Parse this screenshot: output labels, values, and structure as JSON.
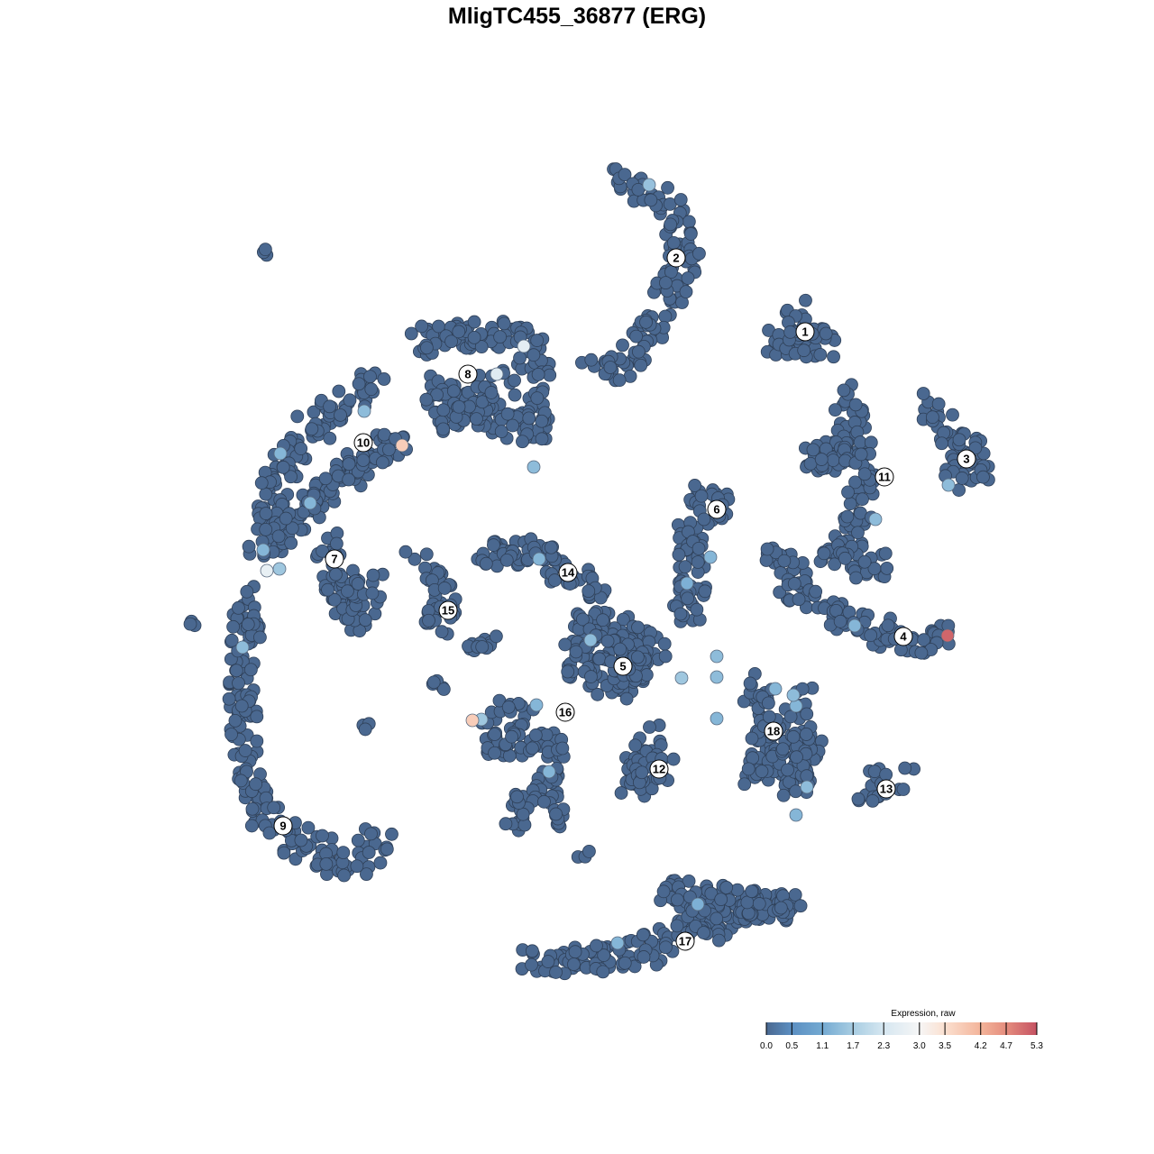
{
  "chart_data": {
    "type": "scatter",
    "title": "MligTC455_36877 (ERG)",
    "xlabel": "",
    "ylabel": "",
    "grid": false,
    "background_color": "#4a6890",
    "cluster_regions": [
      {
        "label": "1",
        "pos": [
          25.3,
          27.2
        ],
        "path": [
          [
            24,
            30
          ],
          [
            25,
            26
          ],
          [
            22,
            26
          ],
          [
            28,
            26
          ]
        ]
      },
      {
        "label": "2",
        "pos": [
          11,
          35.4
        ],
        "path": [
          [
            5,
            44
          ],
          [
            11,
            41
          ],
          [
            12,
            35
          ],
          [
            9,
            29
          ],
          [
            6,
            24
          ],
          [
            2,
            22.5
          ]
        ]
      },
      {
        "label": "3",
        "pos": [
          43.2,
          13.1
        ],
        "path": [
          [
            39,
            19
          ],
          [
            41,
            16
          ],
          [
            45,
            12.5
          ],
          [
            41.5,
            11
          ]
        ]
      },
      {
        "label": "4",
        "pos": [
          36.2,
          -6.6
        ],
        "path": [
          [
            22,
            3
          ],
          [
            25,
            -2
          ],
          [
            30,
            -5
          ],
          [
            36,
            -7
          ],
          [
            41,
            -7
          ]
        ]
      },
      {
        "label": "5",
        "pos": [
          5.1,
          -9.9
        ],
        "path": [
          [
            1,
            -5
          ],
          [
            6,
            -6
          ],
          [
            9,
            -8
          ],
          [
            5,
            -12
          ],
          [
            0,
            -10
          ],
          [
            1,
            -5
          ],
          [
            7,
            -10
          ],
          [
            3,
            -8
          ]
        ]
      },
      {
        "label": "6",
        "pos": [
          15.5,
          7.5
        ],
        "path": [
          [
            12,
            10
          ],
          [
            16,
            8
          ],
          [
            12,
            4
          ],
          [
            13,
            -1
          ],
          [
            12,
            -5
          ]
        ]
      },
      {
        "label": "7",
        "pos": [
          -26.9,
          2
        ],
        "path": [
          [
            -28,
            4
          ],
          [
            -27,
            -2
          ],
          [
            -24,
            -5
          ],
          [
            -23,
            -1
          ],
          [
            -26,
            0
          ]
        ]
      },
      {
        "label": "8",
        "pos": [
          -12.1,
          22.5
        ],
        "path": [
          [
            -18,
            26
          ],
          [
            -12,
            27
          ],
          [
            -6,
            27
          ],
          [
            -4,
            22
          ],
          [
            -5,
            16
          ],
          [
            -10,
            18
          ],
          [
            -16,
            21
          ],
          [
            -14,
            17
          ],
          [
            -8,
            22
          ]
        ]
      },
      {
        "label": "9",
        "pos": [
          -32.6,
          -27.6
        ],
        "path": [
          [
            -36.5,
            -2
          ],
          [
            -37,
            -11
          ],
          [
            -37,
            -20
          ],
          [
            -35,
            -26
          ],
          [
            -30,
            -30
          ],
          [
            -25,
            -32
          ],
          [
            -21.5,
            -29
          ]
        ]
      },
      {
        "label": "10",
        "pos": [
          -23.7,
          14.9
        ],
        "path": [
          [
            -22,
            22
          ],
          [
            -26,
            19
          ],
          [
            -30,
            16
          ],
          [
            -33,
            12
          ],
          [
            -34,
            7
          ],
          [
            -35,
            3
          ],
          [
            -20,
            16
          ],
          [
            -25,
            12
          ]
        ]
      },
      {
        "label": "11",
        "pos": [
          34.1,
          11.1
        ],
        "path": [
          [
            30,
            20
          ],
          [
            31,
            14
          ],
          [
            26,
            13
          ],
          [
            31,
            14
          ],
          [
            32,
            8
          ],
          [
            30,
            4
          ],
          [
            27.5,
            2.5
          ],
          [
            34,
            1
          ]
        ]
      },
      {
        "label": "12",
        "pos": [
          9.1,
          -21.3
        ],
        "path": [
          [
            8,
            -17
          ],
          [
            8,
            -19
          ],
          [
            6,
            -23
          ],
          [
            10,
            -21
          ]
        ]
      },
      {
        "label": "13",
        "pos": [
          34.3,
          -23.5
        ],
        "path": [
          [
            32,
            -23.5
          ],
          [
            36.5,
            -22.5
          ]
        ]
      },
      {
        "label": "14",
        "pos": [
          -1,
          0.5
        ],
        "path": [
          [
            -11,
            2.5
          ],
          [
            -4,
            3
          ],
          [
            -1,
            0
          ],
          [
            3,
            -2
          ]
        ]
      },
      {
        "label": "15",
        "pos": [
          -14.3,
          -3.7
        ],
        "path": [
          [
            -17.5,
            1.5
          ],
          [
            -14.5,
            -2
          ],
          [
            -16,
            -6.5
          ]
        ]
      },
      {
        "label": "16",
        "pos": [
          -1.3,
          -15
        ],
        "path": [
          [
            -6,
            -14
          ],
          [
            -10,
            -18
          ],
          [
            -2,
            -19
          ],
          [
            -4,
            -24
          ],
          [
            -8,
            -27
          ]
        ]
      },
      {
        "label": "17",
        "pos": [
          12,
          -40.4
        ],
        "path": [
          [
            -6,
            -42.5
          ],
          [
            0,
            -42.5
          ],
          [
            7,
            -42
          ],
          [
            12,
            -39
          ],
          [
            18,
            -37
          ],
          [
            24,
            -36.5
          ],
          [
            10,
            -35
          ],
          [
            16,
            -40
          ]
        ]
      },
      {
        "label": "18",
        "pos": [
          21.8,
          -17.1
        ],
        "path": [
          [
            19,
            -12
          ],
          [
            22,
            -15
          ],
          [
            20,
            -22
          ],
          [
            26,
            -19
          ],
          [
            24,
            -24
          ],
          [
            25,
            -13
          ]
        ]
      },
      {
        "label": "",
        "pos": null,
        "path": [
          [
            -34.5,
            36.5
          ],
          [
            -35,
            36
          ]
        ]
      },
      {
        "label": "",
        "pos": null,
        "path": [
          [
            -42,
            -5
          ],
          [
            -42.5,
            -5.3
          ]
        ]
      },
      {
        "label": "",
        "pos": null,
        "path": [
          [
            -23,
            -16.5
          ],
          [
            -23.5,
            -16.5
          ]
        ]
      },
      {
        "label": "",
        "pos": null,
        "path": [
          [
            -15,
            -12
          ],
          [
            -16,
            -12
          ]
        ]
      },
      {
        "label": "",
        "pos": null,
        "path": [
          [
            0.5,
            -31
          ],
          [
            1,
            -30.5
          ]
        ]
      },
      {
        "label": "",
        "pos": null,
        "path": [
          [
            -12,
            -8
          ],
          [
            -9,
            -7
          ]
        ]
      },
      {
        "label": "",
        "pos": null,
        "path": [
          [
            -2,
            -26
          ],
          [
            -2,
            -28
          ]
        ]
      }
    ],
    "expressing_cells": [
      {
        "x": 8,
        "y": 43.5,
        "value": 1.5
      },
      {
        "x": -5.9,
        "y": 25.6,
        "value": 2.6
      },
      {
        "x": -8.9,
        "y": 22.5,
        "value": 2.5
      },
      {
        "x": -23.6,
        "y": 18.4,
        "value": 1.4
      },
      {
        "x": -19.4,
        "y": 14.6,
        "value": 3.8
      },
      {
        "x": -32.9,
        "y": 13.7,
        "value": 1.3
      },
      {
        "x": -29.6,
        "y": 8.2,
        "value": 1.3
      },
      {
        "x": -4.8,
        "y": 12.2,
        "value": 1.4
      },
      {
        "x": -34.8,
        "y": 3,
        "value": 1.3
      },
      {
        "x": -34.4,
        "y": 0.7,
        "value": 2.7
      },
      {
        "x": -33,
        "y": 0.9,
        "value": 1.6
      },
      {
        "x": -37.1,
        "y": -7.8,
        "value": 1.4
      },
      {
        "x": -4.2,
        "y": 2,
        "value": 1.3
      },
      {
        "x": 1.5,
        "y": -7,
        "value": 1.4
      },
      {
        "x": 12.2,
        "y": -0.7,
        "value": 1.2
      },
      {
        "x": 14.8,
        "y": 2.2,
        "value": 1.3
      },
      {
        "x": 15.5,
        "y": -8.8,
        "value": 1.4
      },
      {
        "x": 15.5,
        "y": -11.1,
        "value": 1.4
      },
      {
        "x": 11.6,
        "y": -11.2,
        "value": 1.6
      },
      {
        "x": 15.5,
        "y": -15.7,
        "value": 1.3
      },
      {
        "x": 22,
        "y": -12.4,
        "value": 1.3
      },
      {
        "x": 24,
        "y": -13.1,
        "value": 1.4
      },
      {
        "x": 24.3,
        "y": -14.3,
        "value": 1.3
      },
      {
        "x": 25.5,
        "y": -23.3,
        "value": 1.4
      },
      {
        "x": 24.3,
        "y": -26.4,
        "value": 1.3
      },
      {
        "x": 33.1,
        "y": 6.4,
        "value": 1.4
      },
      {
        "x": 41.2,
        "y": 10.2,
        "value": 1.4
      },
      {
        "x": 30.8,
        "y": -5.4,
        "value": 1.3
      },
      {
        "x": 41.1,
        "y": -6.5,
        "value": 5.1
      },
      {
        "x": -11.6,
        "y": -15.9,
        "value": 3.8
      },
      {
        "x": -10.6,
        "y": -15.8,
        "value": 1.6
      },
      {
        "x": -4.5,
        "y": -14.2,
        "value": 1.3
      },
      {
        "x": -3.1,
        "y": -21.6,
        "value": 1.3
      },
      {
        "x": 13.4,
        "y": -36.3,
        "value": 1.2
      },
      {
        "x": 4.5,
        "y": -40.6,
        "value": 1.3
      }
    ],
    "legend": {
      "title": "Expression, raw",
      "placement": "bottom-right",
      "range": [
        0,
        5.3
      ],
      "ticks": [
        "0.0",
        "0.5",
        "1.1",
        "1.7",
        "2.3",
        "3.0",
        "3.5",
        "4.2",
        "4.7",
        "5.3"
      ],
      "colors": [
        {
          "value": 0,
          "color": "#4a6890"
        },
        {
          "value": 0.5,
          "color": "#5b8fc2"
        },
        {
          "value": 1.1,
          "color": "#74aad2"
        },
        {
          "value": 1.7,
          "color": "#a8cde2"
        },
        {
          "value": 2.3,
          "color": "#d6e7f1"
        },
        {
          "value": 3.0,
          "color": "#f6f6f6"
        },
        {
          "value": 3.5,
          "color": "#fbe0d0"
        },
        {
          "value": 4.2,
          "color": "#f3b49a"
        },
        {
          "value": 4.7,
          "color": "#e58d7e"
        },
        {
          "value": 5.3,
          "color": "#c55262"
        }
      ]
    }
  }
}
